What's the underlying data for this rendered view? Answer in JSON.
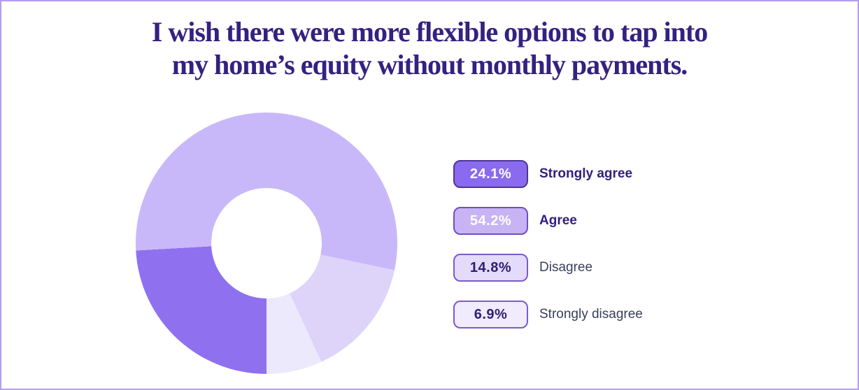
{
  "frame": {
    "background": "#ffffff",
    "border_color": "#b49cf2"
  },
  "title": {
    "line1": "I wish there were more flexible options to tap into",
    "line2": "my home’s equity without monthly payments.",
    "color": "#342180"
  },
  "chart_data": {
    "type": "pie",
    "subtype": "donut",
    "title": "I wish there were more flexible options to tap into my home’s equity without monthly payments.",
    "categories": [
      "Strongly agree",
      "Agree",
      "Disagree",
      "Strongly disagree"
    ],
    "values": [
      24.1,
      54.2,
      14.8,
      6.9
    ],
    "unit": "%",
    "colors": [
      "#8f70ef",
      "#c9b8f9",
      "#ded4fa",
      "#ece9fc"
    ],
    "start_angle_deg": 180,
    "direction": "clockwise",
    "inner_radius_ratio": 0.42,
    "legend_position": "right",
    "grid": false
  },
  "legend": {
    "items": [
      {
        "value": "24.1%",
        "label": "Strongly agree",
        "badge_bg": "#8a6aee",
        "badge_border": "#4f3699",
        "badge_text": "#ffffff",
        "label_color": "#32207d",
        "label_bold": true
      },
      {
        "value": "54.2%",
        "label": "Agree",
        "badge_bg": "#c8b3f5",
        "badge_border": "#6f4ec5",
        "badge_text": "#ffffff",
        "label_color": "#32207d",
        "label_bold": true
      },
      {
        "value": "14.8%",
        "label": "Disagree",
        "badge_bg": "#e4dbfa",
        "badge_border": "#7a5bce",
        "badge_text": "#2f1d73",
        "label_color": "#3a405e",
        "label_bold": false
      },
      {
        "value": "6.9%",
        "label": "Strongly disagree",
        "badge_bg": "#f0ecfd",
        "badge_border": "#7a5bce",
        "badge_text": "#2f1d73",
        "label_color": "#3a405e",
        "label_bold": false
      }
    ]
  }
}
